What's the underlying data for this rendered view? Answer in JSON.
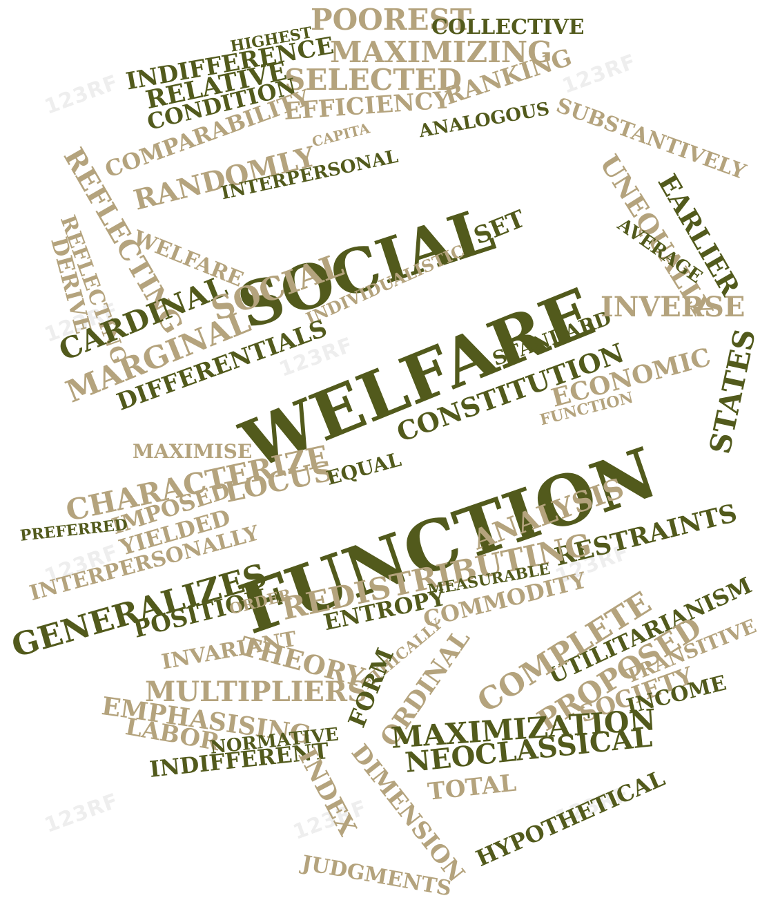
{
  "palette": {
    "dark": "#525a1c",
    "light": "#b4a37d"
  },
  "words": [
    "SOCIAL",
    "WELFARE",
    "FUNCTION",
    "HIGHEST",
    "POOREST",
    "COLLECTIVE",
    "INDIFFERENCE",
    "MAXIMIZING",
    "RELATIVE",
    "SELECTED",
    "CONDITION",
    "EFFICIENCY",
    "RANKING",
    "ANALOGOUS",
    "COMPARABILITY",
    "CAPITA",
    "SUBSTANTIVELY",
    "REFLECTING",
    "RANDOMLY",
    "INTERPERSONAL",
    "UNEQUALLY",
    "EARLIER",
    "REFLECTING",
    "DERIVE",
    "WELFARE",
    "SET",
    "AVERAGE",
    "INDIVIDUALISTIC",
    "CARDINAL",
    "MARGINAL",
    "SOCIAL",
    "DIFFERENTIALS",
    "STANDARD",
    "INVERSE",
    "CONSTITUTION",
    "ECONOMIC",
    "FUNCTION",
    "STATES",
    "MAXIMISE",
    "CHARACTERIZE",
    "IMPOSED",
    "LOCUS",
    "EQUAL",
    "PREFERRED",
    "YIELDED",
    "ANALYSIS",
    "RESTRAINTS",
    "INTERPERSONALLY",
    "REDISTRIBUTING",
    "MEASURABLE",
    "GENERALIZES",
    "POSITION",
    "ORDER",
    "ENTROPY",
    "COMMODITY",
    "UTILITARIANISM",
    "THEORY",
    "COMPLETE",
    "TRANSITIVE",
    "INVARIANT",
    "ETHICALLY",
    "PROPOSED",
    "MULTIPLIERS",
    "ORDINAL",
    "FORM",
    "SOCIETY",
    "EMPHASISING",
    "INCOME",
    "LABOR",
    "NORMATIVE",
    "MAXIMIZATION",
    "INDIFFERENT",
    "INDEX",
    "NEOCLASSICAL",
    "DIMENSION",
    "TOTAL",
    "HYPOTHETICAL",
    "JUDGMENTS"
  ],
  "watermark": "123RF"
}
